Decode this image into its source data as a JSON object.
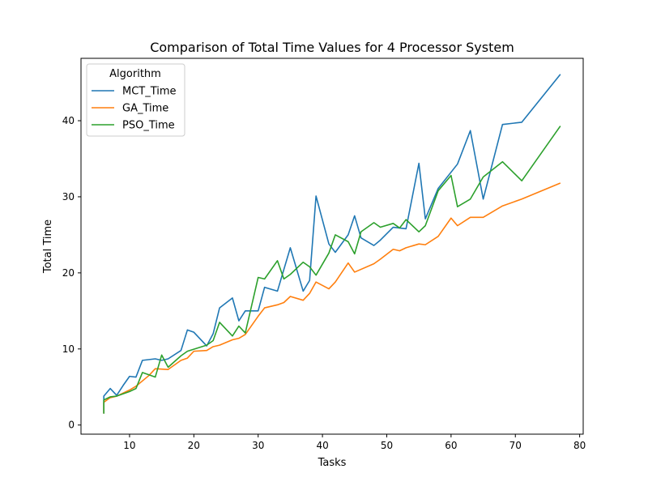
{
  "chart_data": {
    "type": "line",
    "title": "Comparison of Total Time Values for 4 Processor System",
    "xlabel": "Tasks",
    "ylabel": "Total Time",
    "xlim": [
      2.45,
      80.55
    ],
    "ylim": [
      -1.2,
      48.2
    ],
    "xticks": [
      10,
      20,
      30,
      40,
      50,
      60,
      70,
      80
    ],
    "yticks": [
      0,
      10,
      20,
      30,
      40
    ],
    "grid": false,
    "legend": {
      "title": "Algorithm",
      "placement": "top-left"
    },
    "series": [
      {
        "name": "MCT_Time",
        "color": "#1f77b4",
        "points": [
          [
            6,
            1.5
          ],
          [
            6,
            3.8
          ],
          [
            7,
            4.8
          ],
          [
            8,
            3.9
          ],
          [
            9,
            5.2
          ],
          [
            10,
            6.4
          ],
          [
            11,
            6.3
          ],
          [
            12,
            8.5
          ],
          [
            14,
            8.7
          ],
          [
            15,
            8.5
          ],
          [
            16,
            8.7
          ],
          [
            18,
            9.8
          ],
          [
            19,
            12.5
          ],
          [
            20,
            12.2
          ],
          [
            22,
            10.4
          ],
          [
            23,
            12.0
          ],
          [
            24,
            15.4
          ],
          [
            26,
            16.7
          ],
          [
            27,
            13.7
          ],
          [
            28,
            15.0
          ],
          [
            29,
            15.0
          ],
          [
            30,
            15.0
          ],
          [
            31,
            18.1
          ],
          [
            33,
            17.6
          ],
          [
            35,
            23.3
          ],
          [
            37,
            17.6
          ],
          [
            38,
            19.0
          ],
          [
            39,
            30.1
          ],
          [
            41,
            23.8
          ],
          [
            42,
            22.7
          ],
          [
            44,
            25.0
          ],
          [
            45,
            27.5
          ],
          [
            46,
            24.6
          ],
          [
            48,
            23.6
          ],
          [
            49,
            24.3
          ],
          [
            51,
            26.0
          ],
          [
            53,
            25.8
          ],
          [
            55,
            34.4
          ],
          [
            56,
            27.1
          ],
          [
            58,
            31.1
          ],
          [
            61,
            34.3
          ],
          [
            63,
            38.7
          ],
          [
            65,
            29.7
          ],
          [
            68,
            39.5
          ],
          [
            71,
            39.8
          ],
          [
            77,
            46.1
          ]
        ]
      },
      {
        "name": "GA_Time",
        "color": "#ff7f0e",
        "points": [
          [
            6,
            1.5
          ],
          [
            6,
            3.0
          ],
          [
            7,
            3.6
          ],
          [
            8,
            3.8
          ],
          [
            10,
            4.6
          ],
          [
            11,
            5.1
          ],
          [
            13,
            6.5
          ],
          [
            14,
            7.4
          ],
          [
            16,
            7.3
          ],
          [
            18,
            8.5
          ],
          [
            19,
            8.8
          ],
          [
            20,
            9.7
          ],
          [
            22,
            9.8
          ],
          [
            23,
            10.3
          ],
          [
            24,
            10.5
          ],
          [
            26,
            11.2
          ],
          [
            27,
            11.4
          ],
          [
            28,
            11.9
          ],
          [
            30,
            14.3
          ],
          [
            31,
            15.4
          ],
          [
            33,
            15.8
          ],
          [
            34,
            16.1
          ],
          [
            35,
            16.9
          ],
          [
            37,
            16.4
          ],
          [
            38,
            17.3
          ],
          [
            39,
            18.8
          ],
          [
            41,
            17.9
          ],
          [
            42,
            18.8
          ],
          [
            44,
            21.3
          ],
          [
            45,
            20.1
          ],
          [
            48,
            21.2
          ],
          [
            49,
            21.8
          ],
          [
            51,
            23.1
          ],
          [
            52,
            22.9
          ],
          [
            53,
            23.3
          ],
          [
            55,
            23.8
          ],
          [
            56,
            23.7
          ],
          [
            58,
            24.8
          ],
          [
            60,
            27.2
          ],
          [
            61,
            26.2
          ],
          [
            63,
            27.3
          ],
          [
            65,
            27.3
          ],
          [
            68,
            28.8
          ],
          [
            71,
            29.7
          ],
          [
            77,
            31.8
          ]
        ]
      },
      {
        "name": "PSO_Time",
        "color": "#2ca02c",
        "points": [
          [
            6,
            1.5
          ],
          [
            6,
            3.3
          ],
          [
            7,
            3.7
          ],
          [
            8,
            3.8
          ],
          [
            10,
            4.4
          ],
          [
            11,
            4.8
          ],
          [
            12,
            6.9
          ],
          [
            14,
            6.3
          ],
          [
            15,
            9.2
          ],
          [
            16,
            7.6
          ],
          [
            18,
            9.1
          ],
          [
            19,
            9.7
          ],
          [
            22,
            10.5
          ],
          [
            23,
            11.1
          ],
          [
            24,
            13.5
          ],
          [
            26,
            11.7
          ],
          [
            27,
            13.0
          ],
          [
            28,
            12.1
          ],
          [
            30,
            19.4
          ],
          [
            31,
            19.2
          ],
          [
            33,
            21.6
          ],
          [
            34,
            19.2
          ],
          [
            35,
            19.8
          ],
          [
            37,
            21.4
          ],
          [
            38,
            20.8
          ],
          [
            39,
            19.7
          ],
          [
            41,
            22.6
          ],
          [
            42,
            25.0
          ],
          [
            44,
            24.1
          ],
          [
            45,
            22.5
          ],
          [
            46,
            25.4
          ],
          [
            48,
            26.6
          ],
          [
            49,
            26.0
          ],
          [
            51,
            26.5
          ],
          [
            52,
            25.9
          ],
          [
            53,
            27.0
          ],
          [
            55,
            25.4
          ],
          [
            56,
            26.2
          ],
          [
            58,
            30.8
          ],
          [
            60,
            32.8
          ],
          [
            61,
            28.7
          ],
          [
            63,
            29.7
          ],
          [
            65,
            32.6
          ],
          [
            68,
            34.6
          ],
          [
            71,
            32.1
          ],
          [
            77,
            39.3
          ]
        ]
      }
    ]
  }
}
